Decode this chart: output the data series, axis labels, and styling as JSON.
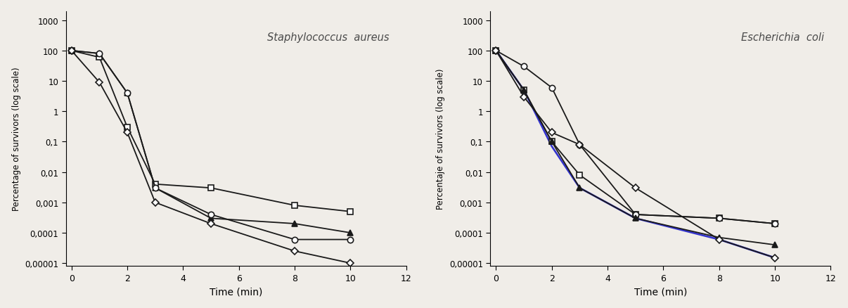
{
  "time_sa": [
    0,
    1,
    2,
    3,
    5,
    8,
    10
  ],
  "sa_square": [
    100,
    60,
    0.3,
    0.004,
    0.003,
    0.0008,
    0.0005
  ],
  "sa_triangle": [
    100,
    80,
    4.0,
    0.003,
    0.0003,
    0.0002,
    0.0001
  ],
  "sa_circle": [
    100,
    80,
    4.0,
    0.003,
    0.0004,
    6e-05,
    6e-05
  ],
  "sa_diamond": [
    100,
    9,
    0.2,
    0.001,
    0.0002,
    2.5e-05,
    1e-05
  ],
  "time_ec": [
    0,
    1,
    2,
    3,
    5,
    8,
    10
  ],
  "ec_square": [
    100,
    5,
    0.1,
    0.008,
    0.0004,
    0.0003,
    0.0002
  ],
  "ec_circle": [
    100,
    30,
    6.0,
    0.08,
    0.0004,
    0.0003,
    0.0002
  ],
  "ec_triangle": [
    100,
    5,
    0.1,
    0.003,
    0.0003,
    7e-05,
    4e-05
  ],
  "ec_diamond": [
    100,
    3,
    0.2,
    0.08,
    0.003,
    6e-05,
    1.5e-05
  ],
  "ec_blue": [
    100,
    5,
    0.07,
    0.003,
    0.0003,
    6e-05,
    1.5e-05
  ],
  "title_sa": "Staphylococcus  aureus",
  "title_ec": "Escherichia  coli",
  "ylabel_left": "Percentage of survivors (log scale)",
  "ylabel_right": "Percentaje of survivors (log scale)",
  "xlabel": "Time (min)",
  "ylim_min": 8e-06,
  "ylim_max": 2000,
  "xlim_min": -0.2,
  "xlim_max": 12,
  "yticks": [
    1e-05,
    0.0001,
    0.001,
    0.01,
    0.1,
    1,
    10,
    100,
    1000
  ],
  "yticklabels": [
    "0,00001",
    "0,0001",
    "0,001",
    "0,01",
    "0,1",
    "1",
    "10",
    "100",
    "1000"
  ],
  "xticks": [
    0,
    2,
    4,
    6,
    8,
    10,
    12
  ],
  "color_black": "#1a1a1a",
  "color_blue": "#3333cc",
  "marker_size": 6,
  "line_width": 1.3,
  "bg_color": "#f0ede8"
}
